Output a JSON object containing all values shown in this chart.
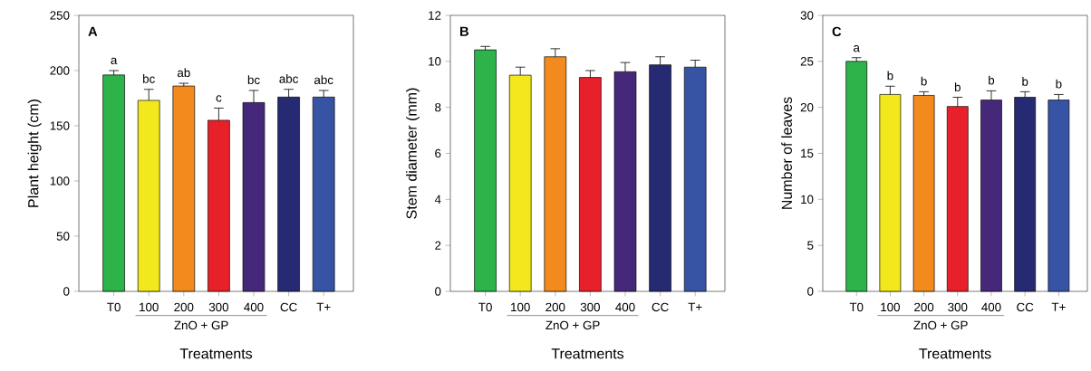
{
  "chart_data": [
    {
      "type": "bar",
      "title": "A",
      "categories": [
        "T0",
        "100",
        "200",
        "300",
        "400",
        "CC",
        "T+"
      ],
      "values": [
        196,
        173,
        186,
        155,
        171,
        176,
        176
      ],
      "errors": [
        4,
        10,
        2.5,
        11,
        11,
        7,
        6
      ],
      "colors": [
        "#2db34a",
        "#f2e81c",
        "#f28a1e",
        "#e8202a",
        "#46287a",
        "#262a72",
        "#3653a4"
      ],
      "xlabel": "Treatments",
      "ylabel": "Plant height (cm)",
      "ylim": [
        0,
        250
      ],
      "yticks": [
        0,
        50,
        100,
        150,
        200,
        250
      ],
      "annotations": [
        {
          "text": "a",
          "x": "T0",
          "y": 200
        },
        {
          "text": "bc",
          "x": "100",
          "y": 183
        },
        {
          "text": "ab",
          "x": "200",
          "y": 188.5
        },
        {
          "text": "c",
          "x": "300",
          "y": 166
        },
        {
          "text": "bc",
          "x": "400",
          "y": 182
        },
        {
          "text": "abc",
          "x": "CC",
          "y": 183
        },
        {
          "text": "abc",
          "x": "T+",
          "y": 182
        },
        "ZnO + GP"
      ]
    },
    {
      "type": "bar",
      "title": "B",
      "categories": [
        "T0",
        "100",
        "200",
        "300",
        "400",
        "CC",
        "T+"
      ],
      "values": [
        10.5,
        9.4,
        10.2,
        9.3,
        9.55,
        9.85,
        9.75
      ],
      "errors": [
        0.15,
        0.35,
        0.35,
        0.3,
        0.4,
        0.35,
        0.3
      ],
      "colors": [
        "#2db34a",
        "#f2e81c",
        "#f28a1e",
        "#e8202a",
        "#46287a",
        "#262a72",
        "#3653a4"
      ],
      "xlabel": "Treatments",
      "ylabel": "Stem diameter (mm)",
      "ylim": [
        0,
        12
      ],
      "yticks": [
        0,
        2,
        4,
        6,
        8,
        10,
        12
      ],
      "annotations": [
        "ZnO + GP"
      ]
    },
    {
      "type": "bar",
      "title": "C",
      "categories": [
        "T0",
        "100",
        "200",
        "300",
        "400",
        "CC",
        "T+"
      ],
      "values": [
        25.0,
        21.4,
        21.3,
        20.1,
        20.8,
        21.1,
        20.8
      ],
      "errors": [
        0.4,
        0.9,
        0.4,
        1,
        1,
        0.6,
        0.6
      ],
      "colors": [
        "#2db34a",
        "#f2e81c",
        "#f28a1e",
        "#e8202a",
        "#46287a",
        "#262a72",
        "#3653a4"
      ],
      "xlabel": "Treatments",
      "ylabel": "Number of leaves",
      "ylim": [
        0,
        30
      ],
      "yticks": [
        0,
        5,
        10,
        15,
        20,
        25,
        30
      ],
      "annotations": [
        {
          "text": "a",
          "x": "T0",
          "y": 25.35
        },
        {
          "text": "b",
          "x": "100",
          "y": 22.3
        },
        {
          "text": "b",
          "x": "200",
          "y": 21.7
        },
        {
          "text": "b",
          "x": "300",
          "y": 21.05
        },
        {
          "text": "b",
          "x": "400",
          "y": 21.8
        },
        {
          "text": "b",
          "x": "CC",
          "y": 21.66
        },
        {
          "text": "b",
          "x": "T+",
          "y": 21.4
        },
        "ZnO + GP"
      ]
    }
  ]
}
